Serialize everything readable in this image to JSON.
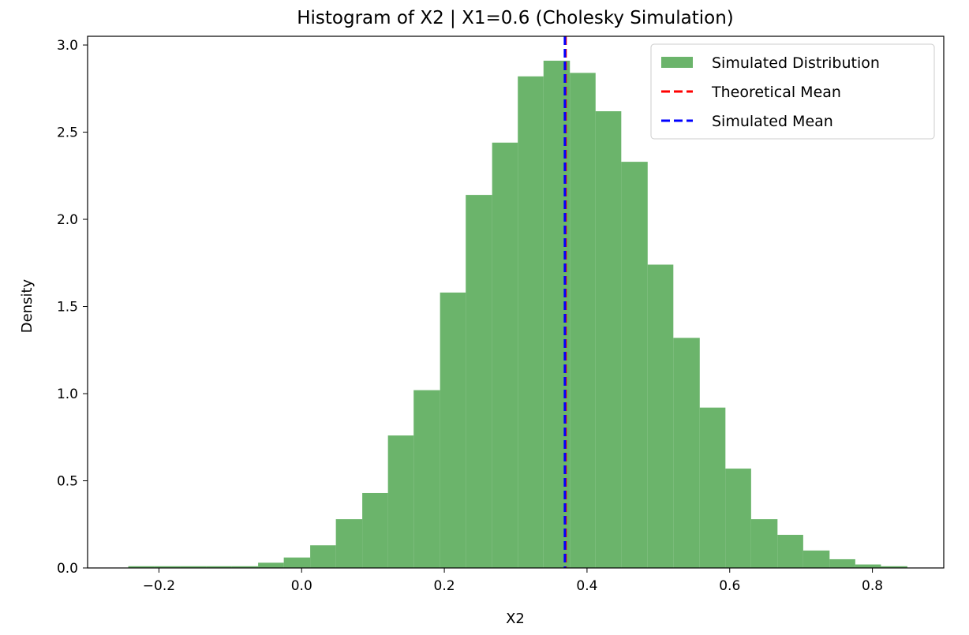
{
  "chart_data": {
    "type": "histogram",
    "title": "Histogram of X2 | X1=0.6 (Cholesky Simulation)",
    "xlabel": "X2",
    "ylabel": "Density",
    "xlim": [
      -0.3,
      0.9
    ],
    "ylim": [
      0.0,
      3.05
    ],
    "xticks": [
      -0.2,
      0.0,
      0.2,
      0.4,
      0.6,
      0.8
    ],
    "xtick_labels": [
      "−0.2",
      "0.0",
      "0.2",
      "0.4",
      "0.6",
      "0.8"
    ],
    "yticks": [
      0.0,
      0.5,
      1.0,
      1.5,
      2.0,
      2.5,
      3.0
    ],
    "ytick_labels": [
      "0.0",
      "0.5",
      "1.0",
      "1.5",
      "2.0",
      "2.5",
      "3.0"
    ],
    "grid": false,
    "legend_position": "top-right",
    "bins": [
      {
        "x0": -0.243,
        "x1": -0.207,
        "density": 0.01
      },
      {
        "x0": -0.207,
        "x1": -0.17,
        "density": 0.01
      },
      {
        "x0": -0.17,
        "x1": -0.134,
        "density": 0.01
      },
      {
        "x0": -0.134,
        "x1": -0.098,
        "density": 0.01
      },
      {
        "x0": -0.098,
        "x1": -0.061,
        "density": 0.01
      },
      {
        "x0": -0.061,
        "x1": -0.025,
        "density": 0.03
      },
      {
        "x0": -0.025,
        "x1": 0.012,
        "density": 0.06
      },
      {
        "x0": 0.012,
        "x1": 0.048,
        "density": 0.13
      },
      {
        "x0": 0.048,
        "x1": 0.085,
        "density": 0.28
      },
      {
        "x0": 0.085,
        "x1": 0.121,
        "density": 0.43
      },
      {
        "x0": 0.121,
        "x1": 0.157,
        "density": 0.76
      },
      {
        "x0": 0.157,
        "x1": 0.194,
        "density": 1.02
      },
      {
        "x0": 0.194,
        "x1": 0.23,
        "density": 1.58
      },
      {
        "x0": 0.23,
        "x1": 0.267,
        "density": 2.14
      },
      {
        "x0": 0.267,
        "x1": 0.303,
        "density": 2.44
      },
      {
        "x0": 0.303,
        "x1": 0.339,
        "density": 2.82
      },
      {
        "x0": 0.339,
        "x1": 0.376,
        "density": 2.91
      },
      {
        "x0": 0.376,
        "x1": 0.412,
        "density": 2.84
      },
      {
        "x0": 0.412,
        "x1": 0.448,
        "density": 2.62
      },
      {
        "x0": 0.448,
        "x1": 0.485,
        "density": 2.33
      },
      {
        "x0": 0.485,
        "x1": 0.521,
        "density": 1.74
      },
      {
        "x0": 0.521,
        "x1": 0.558,
        "density": 1.32
      },
      {
        "x0": 0.558,
        "x1": 0.594,
        "density": 0.92
      },
      {
        "x0": 0.594,
        "x1": 0.63,
        "density": 0.57
      },
      {
        "x0": 0.63,
        "x1": 0.667,
        "density": 0.28
      },
      {
        "x0": 0.667,
        "x1": 0.703,
        "density": 0.19
      },
      {
        "x0": 0.703,
        "x1": 0.74,
        "density": 0.1
      },
      {
        "x0": 0.74,
        "x1": 0.776,
        "density": 0.05
      },
      {
        "x0": 0.776,
        "x1": 0.812,
        "density": 0.02
      },
      {
        "x0": 0.812,
        "x1": 0.849,
        "density": 0.01
      }
    ],
    "vertical_lines": [
      {
        "name": "Theoretical Mean",
        "x": 0.37,
        "color": "#ff0000",
        "style": "dashed"
      },
      {
        "name": "Simulated Mean",
        "x": 0.369,
        "color": "#0000ff",
        "style": "dashed"
      }
    ],
    "histogram_color": "#4aa34a",
    "histogram_alpha": 0.82,
    "legend": [
      {
        "label": "Simulated Distribution",
        "kind": "patch",
        "color": "#4aa34a"
      },
      {
        "label": "Theoretical Mean",
        "kind": "dashed-line",
        "color": "#ff0000"
      },
      {
        "label": "Simulated Mean",
        "kind": "dashed-line",
        "color": "#0000ff"
      }
    ]
  }
}
